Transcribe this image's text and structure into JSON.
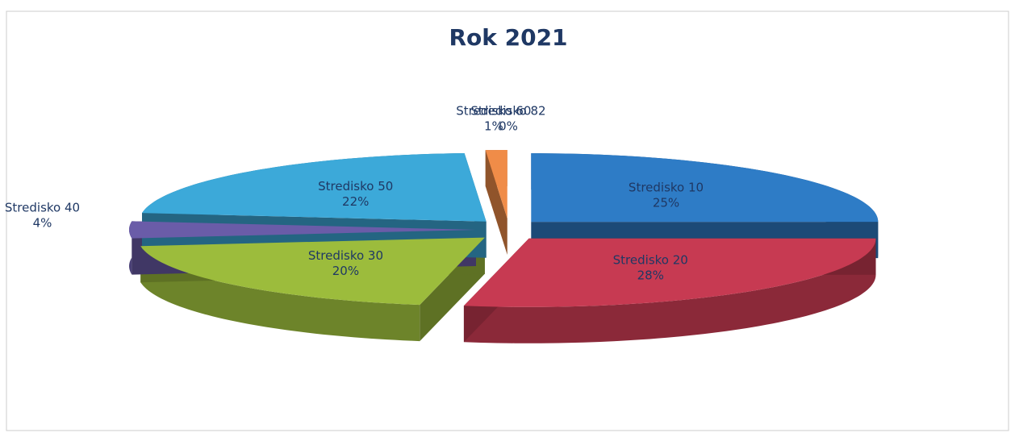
{
  "chart_data": {
    "type": "pie",
    "title": "Rok 2021",
    "categories": [
      "Stredisko 10",
      "Stredisko 20",
      "Stredisko 30",
      "Stredisko 40",
      "Stredisko 50",
      "Stredisko 60",
      "Stredisko 82"
    ],
    "values": [
      25,
      28,
      20,
      4,
      22,
      1,
      0
    ],
    "value_labels": [
      "25%",
      "28%",
      "20%",
      "4%",
      "22%",
      "1%",
      "0%"
    ],
    "colors": [
      "#2e7cc6",
      "#c73a52",
      "#9cbc3c",
      "#6a5ca8",
      "#3ca9d9",
      "#f08c48",
      "#8a8a8a"
    ]
  }
}
